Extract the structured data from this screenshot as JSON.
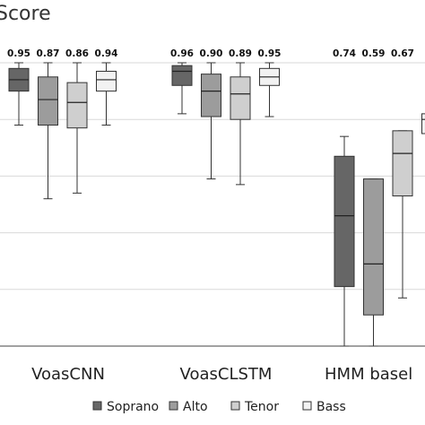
{
  "chart_data": {
    "type": "box",
    "title": "Score",
    "ylim": [
      0,
      1
    ],
    "grid": true,
    "legend_position": "bottom",
    "categories": [
      "VoasCNN",
      "VoasCLSTM",
      "HMM basel"
    ],
    "series": [
      {
        "name": "Soprano",
        "color": "#666666",
        "boxes": [
          {
            "min": 0.78,
            "q1": 0.9,
            "median": 0.94,
            "q3": 0.98,
            "max": 1.0,
            "label": "0.95"
          },
          {
            "min": 0.82,
            "q1": 0.92,
            "median": 0.97,
            "q3": 0.99,
            "max": 1.0,
            "label": "0.96"
          },
          {
            "min": 0.0,
            "q1": 0.21,
            "median": 0.46,
            "q3": 0.67,
            "max": 0.74,
            "label": "0.74"
          }
        ]
      },
      {
        "name": "Alto",
        "color": "#9c9c9c",
        "boxes": [
          {
            "min": 0.52,
            "q1": 0.78,
            "median": 0.87,
            "q3": 0.95,
            "max": 1.0,
            "label": "0.87"
          },
          {
            "min": 0.59,
            "q1": 0.81,
            "median": 0.9,
            "q3": 0.96,
            "max": 1.0,
            "label": "0.90"
          },
          {
            "min": 0.0,
            "q1": 0.11,
            "median": 0.29,
            "q3": 0.59,
            "max": 0.59,
            "label": "0.59"
          }
        ]
      },
      {
        "name": "Tenor",
        "color": "#cfcfcf",
        "boxes": [
          {
            "min": 0.54,
            "q1": 0.77,
            "median": 0.86,
            "q3": 0.93,
            "max": 1.0,
            "label": "0.86"
          },
          {
            "min": 0.57,
            "q1": 0.8,
            "median": 0.89,
            "q3": 0.95,
            "max": 1.0,
            "label": "0.89"
          },
          {
            "min": 0.17,
            "q1": 0.53,
            "median": 0.68,
            "q3": 0.76,
            "max": 0.76,
            "label": "0.67"
          }
        ]
      },
      {
        "name": "Bass",
        "color": "#f2f2f2",
        "boxes": [
          {
            "min": 0.78,
            "q1": 0.9,
            "median": 0.94,
            "q3": 0.97,
            "max": 1.0,
            "label": "0.94"
          },
          {
            "min": 0.81,
            "q1": 0.92,
            "median": 0.95,
            "q3": 0.98,
            "max": 1.0,
            "label": "0.95"
          },
          {
            "min": 0.75,
            "q1": 0.75,
            "median": 0.8,
            "q3": 0.82,
            "max": 0.82,
            "label": ""
          }
        ]
      }
    ]
  }
}
